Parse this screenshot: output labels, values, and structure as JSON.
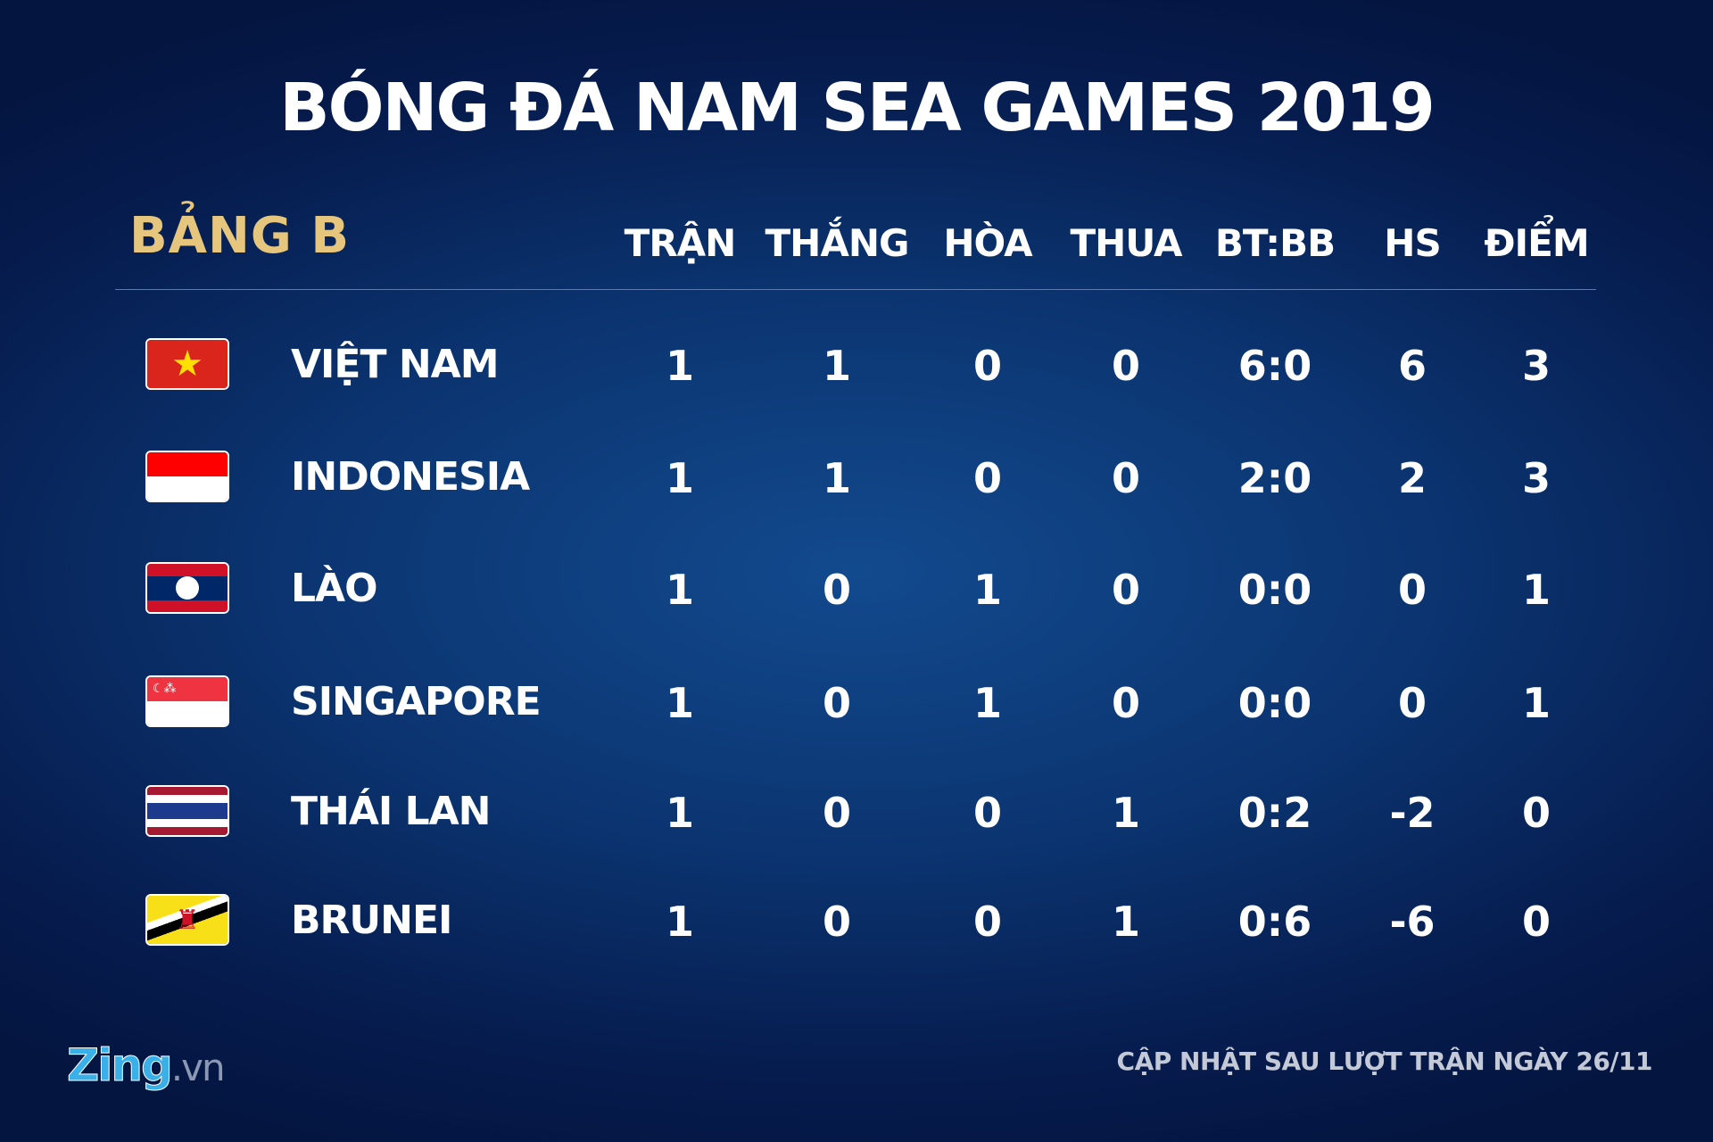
{
  "title": "BÓNG ĐÁ NAM SEA GAMES 2019",
  "group": "BẢNG B",
  "headers": [
    "TRẬN",
    "THẮNG",
    "HÒA",
    "THUA",
    "BT:BB",
    "HS",
    "ĐIỂM"
  ],
  "rows": [
    {
      "team": "VIỆT NAM",
      "flag": "vietnam-flag",
      "values": [
        "1",
        "1",
        "0",
        "0",
        "6:0",
        "6",
        "3"
      ]
    },
    {
      "team": "INDONESIA",
      "flag": "indonesia-flag",
      "values": [
        "1",
        "1",
        "0",
        "0",
        "2:0",
        "2",
        "3"
      ]
    },
    {
      "team": "LÀO",
      "flag": "laos-flag",
      "values": [
        "1",
        "0",
        "1",
        "0",
        "0:0",
        "0",
        "1"
      ]
    },
    {
      "team": "SINGAPORE",
      "flag": "singapore-flag",
      "values": [
        "1",
        "0",
        "1",
        "0",
        "0:0",
        "0",
        "1"
      ]
    },
    {
      "team": "THÁI LAN",
      "flag": "thailand-flag",
      "values": [
        "1",
        "0",
        "0",
        "1",
        "0:2",
        "-2",
        "0"
      ]
    },
    {
      "team": "BRUNEI",
      "flag": "brunei-flag",
      "values": [
        "1",
        "0",
        "0",
        "1",
        "0:6",
        "-6",
        "0"
      ]
    }
  ],
  "footer": {
    "logo": "Zing",
    "logo_suffix": ".vn",
    "note": "CẬP NHẬT SAU LƯỢT TRẬN NGÀY 26/11"
  },
  "colors": {
    "group_label": "#e6c67d",
    "background": "#0b3470"
  }
}
